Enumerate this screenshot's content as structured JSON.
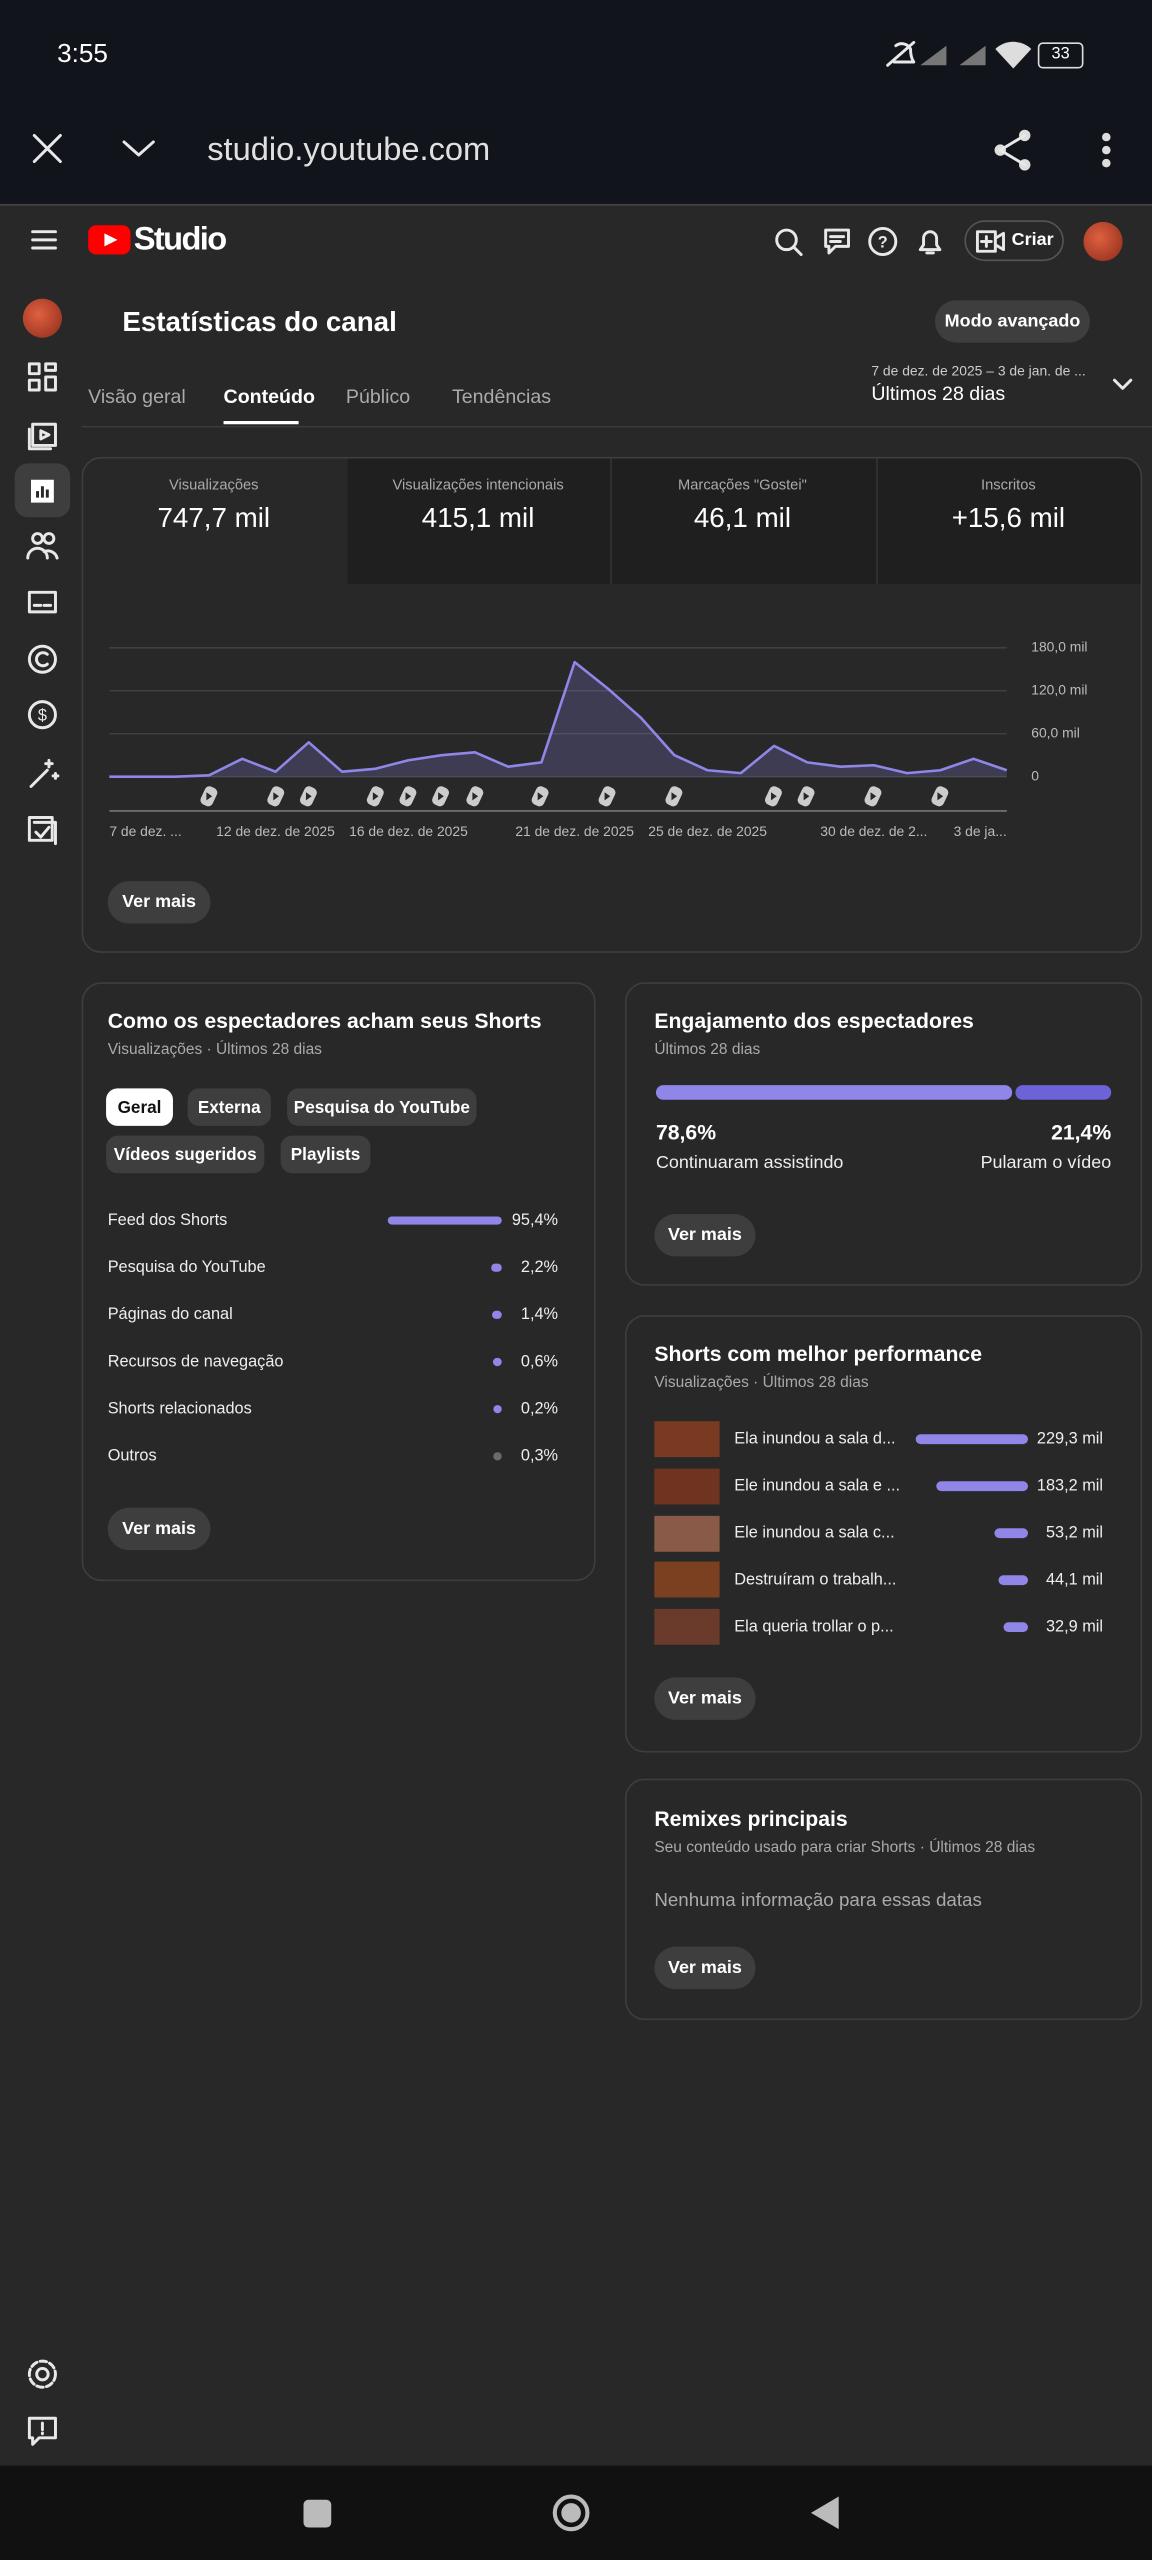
{
  "status_bar": {
    "time": "3:55",
    "battery": "33"
  },
  "browser": {
    "url": "studio.youtube.com"
  },
  "header": {
    "logo": "Studio",
    "create_button": "Criar"
  },
  "page": {
    "title": "Estatísticas do canal",
    "advanced_mode": "Modo avançado",
    "tabs": [
      "Visão geral",
      "Conteúdo",
      "Público",
      "Tendências"
    ],
    "date_range": "7 de dez. de 2025 – 3 de jan. de ...",
    "period": "Últimos 28 dias"
  },
  "overview": {
    "metrics": [
      {
        "label": "Visualizações",
        "value": "747,7 mil"
      },
      {
        "label": "Visualizações intencionais",
        "value": "415,1 mil"
      },
      {
        "label": "Marcações \"Gostei\"",
        "value": "46,1 mil"
      },
      {
        "label": "Inscritos",
        "value": "+15,6 mil"
      }
    ],
    "chart": {
      "type": "line",
      "categories": [
        "7 de dez. ...",
        null,
        null,
        null,
        null,
        "12 de dez. de 2025",
        null,
        null,
        null,
        "16 de dez. de 2025",
        null,
        null,
        null,
        null,
        "21 de dez. de 2025",
        null,
        null,
        null,
        "25 de dez. de 2025",
        null,
        null,
        null,
        null,
        "30 de dez. de 2...",
        null,
        null,
        null,
        "3 de ja..."
      ],
      "values": [
        0,
        0,
        0,
        2,
        25,
        7,
        48,
        7,
        11,
        23,
        30,
        34,
        14,
        20,
        160,
        123,
        82,
        30,
        9,
        5,
        43,
        20,
        14,
        16,
        5,
        9,
        25,
        9
      ],
      "color": "#8f86e8",
      "ylim": [
        0,
        180
      ],
      "yticks": [
        0,
        {
          "value": 60,
          "label": "60,0 mil"
        },
        {
          "value": 120,
          "label": "120,0 mil"
        },
        {
          "value": 180,
          "label": "180,0 mil"
        }
      ],
      "grid": true
    },
    "more": "Ver mais"
  },
  "shorts_sources": {
    "title": "Como os espectadores acham seus Shorts",
    "subtitle": "Visualizações · Últimos 28 dias",
    "filters": [
      "Geral",
      "Externa",
      "Pesquisa do YouTube",
      "Vídeos sugeridos",
      "Playlists"
    ],
    "categories": [
      "Feed dos Shorts",
      "Pesquisa do YouTube",
      "Páginas do canal",
      "Recursos de navegação",
      "Shorts relacionados",
      "Outros"
    ],
    "values": [
      95.4,
      2.2,
      1.4,
      0.6,
      0.2,
      0.3
    ],
    "value_labels": [
      "95,4%",
      "2,2%",
      "1,4%",
      "0,6%",
      "0,2%",
      "0,3%"
    ],
    "colors": [
      "#8f86e8",
      "#8f86e8",
      "#8f86e8",
      "#8f86e8",
      "#8f86e8",
      "#6a6a6a"
    ],
    "more": "Ver mais"
  },
  "engagement": {
    "title": "Engajamento dos espectadores",
    "subtitle": "Últimos 28 dias",
    "categories": [
      "Continuaram assistindo",
      "Pularam o vídeo"
    ],
    "values": [
      78.6,
      21.4
    ],
    "value_labels": [
      "78,6%",
      "21,4%"
    ],
    "colors": [
      "#8f86e8",
      "#6c63d8"
    ],
    "more": "Ver mais"
  },
  "top_shorts": {
    "title": "Shorts com melhor performance",
    "subtitle": "Visualizações · Últimos 28 dias",
    "categories": [
      "Ela inundou a sala d...",
      "Ele inundou a sala e ...",
      "Ele inundou a sala c...",
      "Destruíram o trabalh...",
      "Ela queria trollar o p..."
    ],
    "values": [
      229.3,
      183.2,
      53.2,
      44.1,
      32.9
    ],
    "value_labels": [
      "229,3 mil",
      "183,2 mil",
      "53,2 mil",
      "44,1 mil",
      "32,9 mil"
    ],
    "color": "#8f86e8",
    "more": "Ver mais"
  },
  "remixes": {
    "title": "Remixes principais",
    "subtitle": "Seu conteúdo usado para criar Shorts · Últimos 28 dias",
    "empty_message": "Nenhuma informação para essas datas",
    "more": "Ver mais"
  }
}
